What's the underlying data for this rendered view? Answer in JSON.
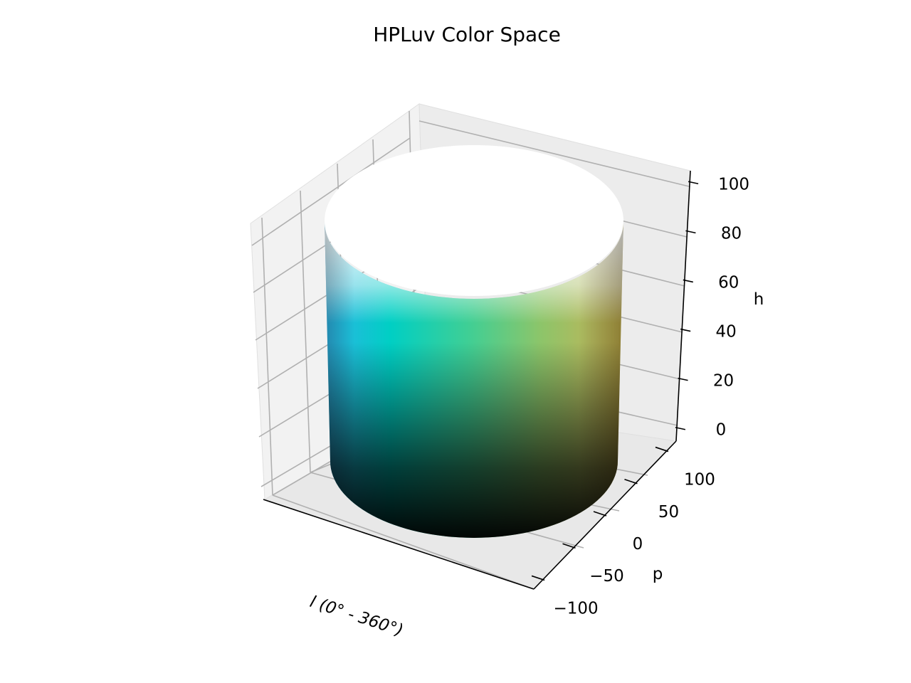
{
  "chart_data": {
    "type": "surface3d",
    "title": "HPLuv Color Space",
    "axes": {
      "x": {
        "label": "l (0° - 360°)",
        "ticks": []
      },
      "y": {
        "label": "p",
        "ticks": [
          "−100",
          "−50",
          "0",
          "50",
          "100"
        ],
        "range": [
          -115,
          115
        ]
      },
      "z": {
        "label": "h",
        "ticks": [
          "0",
          "20",
          "40",
          "60",
          "80",
          "100"
        ],
        "range": [
          -5,
          105
        ]
      }
    },
    "surface": {
      "shape": "cylinder",
      "radius": 100,
      "height": [
        0,
        100
      ],
      "color_model": "HPLuv (hue around circumference, lightness along height)",
      "colors": {
        "base": "#000000",
        "top": "#ffffff",
        "cyan_side": "#00cfc4",
        "green_side": "#8cc56a",
        "blue_side": "#2fb3e6",
        "yellow_side": "#c9b24a"
      }
    },
    "grid": true,
    "pane_color": "#f2f2f2"
  }
}
